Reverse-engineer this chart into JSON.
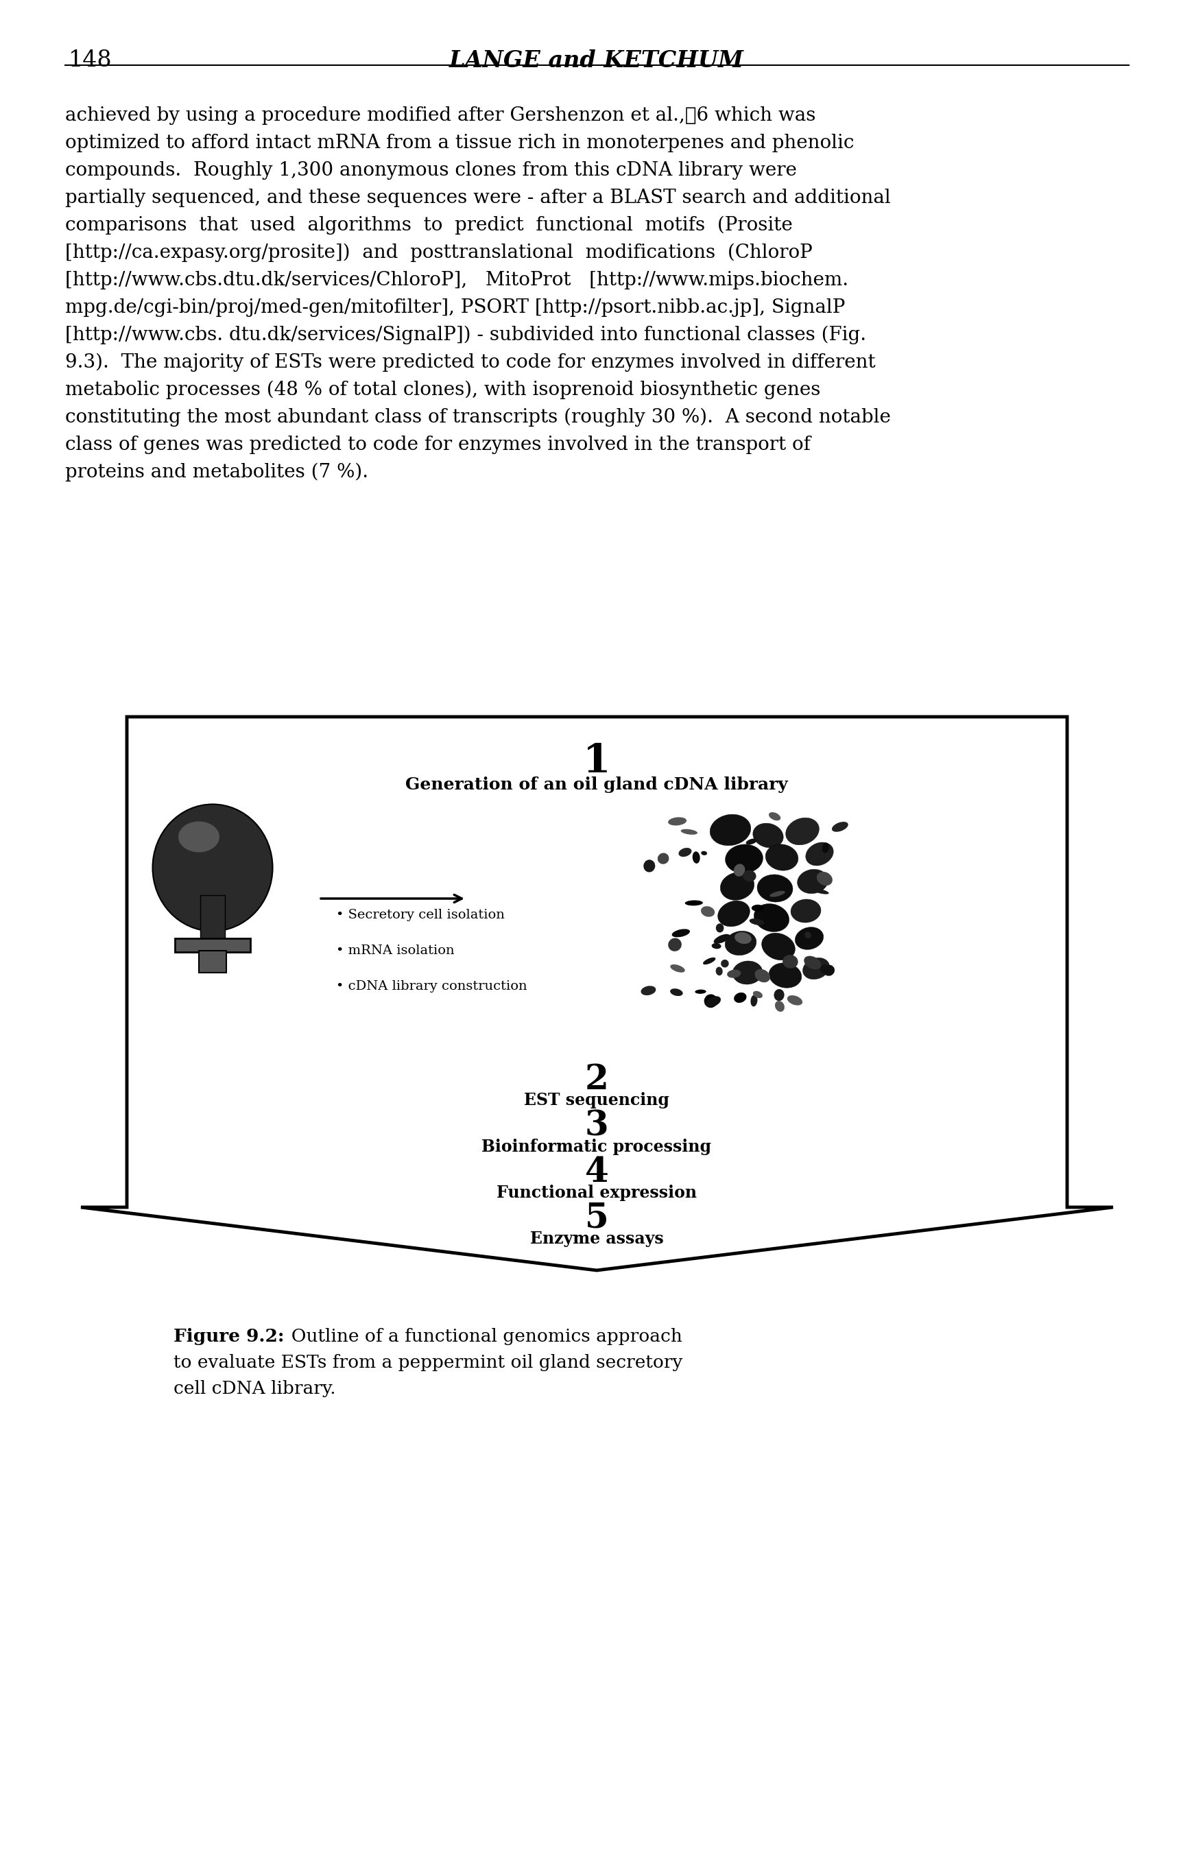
{
  "page_number": "148",
  "header_title": "LANGE and KETCHUM",
  "body_lines": [
    "achieved by using a procedure modified after Gershenzon et al.,\u00076 which was",
    "optimized to afford intact mRNA from a tissue rich in monoterpenes and phenolic",
    "compounds.  Roughly 1,300 anonymous clones from this cDNA library were",
    "partially sequenced, and these sequences were - after a BLAST search and additional",
    "comparisons  that  used  algorithms  to  predict  functional  motifs  (Prosite",
    "[http://ca.expasy.org/prosite])  and  posttranslational  modifications  (ChloroP",
    "[http://www.cbs.dtu.dk/services/ChloroP],   MitoProt   [http://www.mips.biochem.",
    "mpg.de/cgi-bin/proj/med-gen/mitofilter], PSORT [http://psort.nibb.ac.jp], SignalP",
    "[http://www.cbs. dtu.dk/services/SignalP]) - subdivided into functional classes (Fig.",
    "9.3).  The majority of ESTs were predicted to code for enzymes involved in different",
    "metabolic processes (48 % of total clones), with isoprenoid biosynthetic genes",
    "constituting the most abundant class of transcripts (roughly 30 %).  A second notable",
    "class of genes was predicted to code for enzymes involved in the transport of",
    "proteins and metabolites (7 %)."
  ],
  "step1_number": "1",
  "step1_label": "Generation of an oil gland cDNA library",
  "step2_number": "2",
  "step2_label": "EST sequencing",
  "step3_number": "3",
  "step3_label": "Bioinformatic processing",
  "step4_number": "4",
  "step4_label": "Functional expression",
  "step5_number": "5",
  "step5_label": "Enzyme assays",
  "bullet1": "Secretory cell isolation",
  "bullet2": "mRNA isolation",
  "bullet3": "cDNA library construction",
  "caption_bold": "Figure 9.2:",
  "caption_normal": "  Outline of a functional genomics approach\nto evaluate ESTs from a peppermint oil gland secretory\ncell cDNA library.",
  "text_color": "#000000",
  "background_color": "#ffffff"
}
